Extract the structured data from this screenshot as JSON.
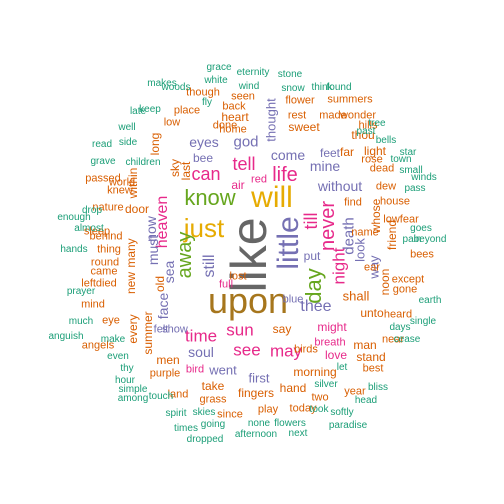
{
  "colors": {
    "grey": "#666666",
    "gold": "#a6761d",
    "yellow": "#e6ab02",
    "green": "#66a61e",
    "pink": "#e7298a",
    "purple": "#7570b3",
    "orange": "#d95f02",
    "teal": "#1b9e77"
  },
  "words": [
    {
      "text": "like",
      "color": "grey",
      "vertical": true
    },
    {
      "text": "upon",
      "color": "gold"
    },
    {
      "text": "will",
      "color": "yellow"
    },
    {
      "text": "little",
      "color": "purple",
      "vertical": true
    },
    {
      "text": "just",
      "color": "yellow"
    },
    {
      "text": "know",
      "color": "green"
    },
    {
      "text": "away",
      "color": "green",
      "vertical": true
    },
    {
      "text": "day",
      "color": "green",
      "vertical": true
    },
    {
      "text": "life",
      "color": "pink"
    },
    {
      "text": "never",
      "color": "pink",
      "vertical": true
    },
    {
      "text": "night",
      "color": "pink",
      "vertical": true
    },
    {
      "text": "can",
      "color": "pink"
    },
    {
      "text": "tell",
      "color": "pink"
    },
    {
      "text": "heaven",
      "color": "pink",
      "vertical": true
    },
    {
      "text": "till",
      "color": "pink",
      "vertical": true
    },
    {
      "text": "time",
      "color": "pink"
    },
    {
      "text": "sun",
      "color": "pink"
    },
    {
      "text": "see",
      "color": "pink"
    },
    {
      "text": "may",
      "color": "pink"
    },
    {
      "text": "thee",
      "color": "purple"
    },
    {
      "text": "soul",
      "color": "purple"
    },
    {
      "text": "still",
      "color": "purple",
      "vertical": true
    },
    {
      "text": "death",
      "color": "purple",
      "vertical": true
    },
    {
      "text": "god",
      "color": "purple"
    },
    {
      "text": "eyes",
      "color": "purple"
    },
    {
      "text": "come",
      "color": "purple"
    },
    {
      "text": "mine",
      "color": "purple"
    },
    {
      "text": "without",
      "color": "purple"
    },
    {
      "text": "thought",
      "color": "purple",
      "vertical": true
    },
    {
      "text": "look",
      "color": "purple",
      "vertical": true
    },
    {
      "text": "way",
      "color": "purple",
      "vertical": true
    },
    {
      "text": "shall",
      "color": "orange"
    },
    {
      "text": "face",
      "color": "purple",
      "vertical": true
    },
    {
      "text": "must",
      "color": "purple",
      "vertical": true
    },
    {
      "text": "now",
      "color": "purple",
      "vertical": true
    },
    {
      "text": "sea",
      "color": "purple",
      "vertical": true
    },
    {
      "text": "went",
      "color": "purple"
    },
    {
      "text": "first",
      "color": "purple"
    },
    {
      "text": "bee",
      "color": "purple"
    },
    {
      "text": "feet",
      "color": "purple"
    },
    {
      "text": "put",
      "color": "purple"
    },
    {
      "text": "air",
      "color": "pink"
    },
    {
      "text": "love",
      "color": "pink"
    },
    {
      "text": "might",
      "color": "pink"
    },
    {
      "text": "unto",
      "color": "orange"
    },
    {
      "text": "say",
      "color": "orange"
    },
    {
      "text": "sweet",
      "color": "orange"
    },
    {
      "text": "morning",
      "color": "orange"
    },
    {
      "text": "heart",
      "color": "orange"
    },
    {
      "text": "men",
      "color": "orange"
    },
    {
      "text": "take",
      "color": "orange"
    },
    {
      "text": "fingers",
      "color": "orange"
    },
    {
      "text": "hand",
      "color": "orange"
    },
    {
      "text": "door",
      "color": "orange"
    },
    {
      "text": "whose",
      "color": "orange",
      "vertical": true
    },
    {
      "text": "far",
      "color": "orange"
    },
    {
      "text": "light",
      "color": "orange"
    },
    {
      "text": "thou",
      "color": "orange"
    },
    {
      "text": "summer",
      "color": "orange",
      "vertical": true
    },
    {
      "text": "every",
      "color": "orange",
      "vertical": true
    },
    {
      "text": "within",
      "color": "orange",
      "vertical": true
    },
    {
      "text": "new",
      "color": "orange",
      "vertical": true
    },
    {
      "text": "many",
      "color": "orange",
      "vertical": true
    },
    {
      "text": "old",
      "color": "orange",
      "vertical": true
    },
    {
      "text": "long",
      "color": "orange",
      "vertical": true
    },
    {
      "text": "sky",
      "color": "orange",
      "vertical": true
    },
    {
      "text": "last",
      "color": "orange",
      "vertical": true
    },
    {
      "text": "noon",
      "color": "orange",
      "vertical": true
    },
    {
      "text": "friend",
      "color": "orange",
      "vertical": true
    },
    {
      "text": "man",
      "color": "orange"
    },
    {
      "text": "stand",
      "color": "orange"
    },
    {
      "text": "two",
      "color": "orange"
    },
    {
      "text": "year",
      "color": "orange"
    },
    {
      "text": "birds",
      "color": "orange"
    },
    {
      "text": "done",
      "color": "orange"
    },
    {
      "text": "though",
      "color": "orange"
    },
    {
      "text": "seen",
      "color": "orange"
    },
    {
      "text": "place",
      "color": "orange"
    },
    {
      "text": "back",
      "color": "orange"
    },
    {
      "text": "flower",
      "color": "orange"
    },
    {
      "text": "rest",
      "color": "orange"
    },
    {
      "text": "made",
      "color": "orange"
    },
    {
      "text": "wonder",
      "color": "orange"
    },
    {
      "text": "summers",
      "color": "orange"
    },
    {
      "text": "hills",
      "color": "orange"
    },
    {
      "text": "dead",
      "color": "orange"
    },
    {
      "text": "dew",
      "color": "orange"
    },
    {
      "text": "house",
      "color": "orange"
    },
    {
      "text": "find",
      "color": "orange"
    },
    {
      "text": "lowfear",
      "color": "orange"
    },
    {
      "text": "behind",
      "color": "orange"
    },
    {
      "text": "thing",
      "color": "orange"
    },
    {
      "text": "came",
      "color": "orange"
    },
    {
      "text": "mind",
      "color": "orange"
    },
    {
      "text": "angels",
      "color": "orange"
    },
    {
      "text": "eye",
      "color": "orange"
    },
    {
      "text": "leftdied",
      "color": "orange"
    },
    {
      "text": "knew",
      "color": "orange"
    },
    {
      "text": "nature",
      "color": "orange"
    },
    {
      "text": "world",
      "color": "orange"
    },
    {
      "text": "passed",
      "color": "orange"
    },
    {
      "text": "round",
      "color": "orange"
    },
    {
      "text": "sleep",
      "color": "orange"
    },
    {
      "text": "purple",
      "color": "orange"
    },
    {
      "text": "land",
      "color": "orange"
    },
    {
      "text": "grass",
      "color": "orange"
    },
    {
      "text": "play",
      "color": "orange"
    },
    {
      "text": "since",
      "color": "orange"
    },
    {
      "text": "today",
      "color": "orange"
    },
    {
      "text": "best",
      "color": "orange"
    },
    {
      "text": "heard",
      "color": "orange"
    },
    {
      "text": "gone",
      "color": "orange"
    },
    {
      "text": "near",
      "color": "orange"
    },
    {
      "text": "except",
      "color": "orange"
    },
    {
      "text": "bees",
      "color": "orange"
    },
    {
      "text": "name",
      "color": "orange"
    },
    {
      "text": "ear",
      "color": "orange"
    },
    {
      "text": "rose",
      "color": "orange"
    },
    {
      "text": "home",
      "color": "orange"
    },
    {
      "text": "full",
      "color": "pink"
    },
    {
      "text": "red",
      "color": "pink"
    },
    {
      "text": "bird",
      "color": "pink"
    },
    {
      "text": "breath",
      "color": "pink"
    },
    {
      "text": "blue",
      "color": "purple"
    },
    {
      "text": "lost",
      "color": "orange"
    },
    {
      "text": "felt",
      "color": "purple"
    },
    {
      "text": "show",
      "color": "purple"
    },
    {
      "text": "low",
      "color": "orange"
    },
    {
      "text": "grace",
      "color": "teal"
    },
    {
      "text": "white",
      "color": "teal"
    },
    {
      "text": "eternity",
      "color": "teal"
    },
    {
      "text": "wind",
      "color": "teal"
    },
    {
      "text": "stone",
      "color": "teal"
    },
    {
      "text": "snow",
      "color": "teal"
    },
    {
      "text": "found",
      "color": "teal"
    },
    {
      "text": "past",
      "color": "teal"
    },
    {
      "text": "think",
      "color": "teal"
    },
    {
      "text": "makes",
      "color": "teal"
    },
    {
      "text": "woods",
      "color": "teal"
    },
    {
      "text": "fly",
      "color": "teal"
    },
    {
      "text": "keep",
      "color": "teal"
    },
    {
      "text": "late",
      "color": "teal"
    },
    {
      "text": "well",
      "color": "teal"
    },
    {
      "text": "read",
      "color": "teal"
    },
    {
      "text": "side",
      "color": "teal"
    },
    {
      "text": "children",
      "color": "teal"
    },
    {
      "text": "grave",
      "color": "teal"
    },
    {
      "text": "drop",
      "color": "teal"
    },
    {
      "text": "enough",
      "color": "teal"
    },
    {
      "text": "almost",
      "color": "teal"
    },
    {
      "text": "hands",
      "color": "teal"
    },
    {
      "text": "prayer",
      "color": "teal"
    },
    {
      "text": "much",
      "color": "teal"
    },
    {
      "text": "anguish",
      "color": "teal"
    },
    {
      "text": "make",
      "color": "teal"
    },
    {
      "text": "even",
      "color": "teal"
    },
    {
      "text": "thy",
      "color": "teal"
    },
    {
      "text": "hour",
      "color": "teal"
    },
    {
      "text": "simple",
      "color": "teal"
    },
    {
      "text": "among",
      "color": "teal"
    },
    {
      "text": "touch",
      "color": "teal"
    },
    {
      "text": "spirit",
      "color": "teal"
    },
    {
      "text": "times",
      "color": "teal"
    },
    {
      "text": "skies",
      "color": "teal"
    },
    {
      "text": "going",
      "color": "teal"
    },
    {
      "text": "dropped",
      "color": "teal"
    },
    {
      "text": "none",
      "color": "teal"
    },
    {
      "text": "flowers",
      "color": "teal"
    },
    {
      "text": "afternoon",
      "color": "teal"
    },
    {
      "text": "next",
      "color": "teal"
    },
    {
      "text": "silver",
      "color": "teal"
    },
    {
      "text": "took",
      "color": "teal"
    },
    {
      "text": "softly",
      "color": "teal"
    },
    {
      "text": "paradise",
      "color": "teal"
    },
    {
      "text": "head",
      "color": "teal"
    },
    {
      "text": "let",
      "color": "teal"
    },
    {
      "text": "bliss",
      "color": "teal"
    },
    {
      "text": "days",
      "color": "teal"
    },
    {
      "text": "cease",
      "color": "teal"
    },
    {
      "text": "single",
      "color": "teal"
    },
    {
      "text": "earth",
      "color": "teal"
    },
    {
      "text": "pain",
      "color": "teal"
    },
    {
      "text": "goes",
      "color": "teal"
    },
    {
      "text": "beyond",
      "color": "teal"
    },
    {
      "text": "pass",
      "color": "teal"
    },
    {
      "text": "winds",
      "color": "teal"
    },
    {
      "text": "town",
      "color": "teal"
    },
    {
      "text": "small",
      "color": "teal"
    },
    {
      "text": "star",
      "color": "teal"
    },
    {
      "text": "bells",
      "color": "teal"
    },
    {
      "text": "tree",
      "color": "teal"
    }
  ]
}
